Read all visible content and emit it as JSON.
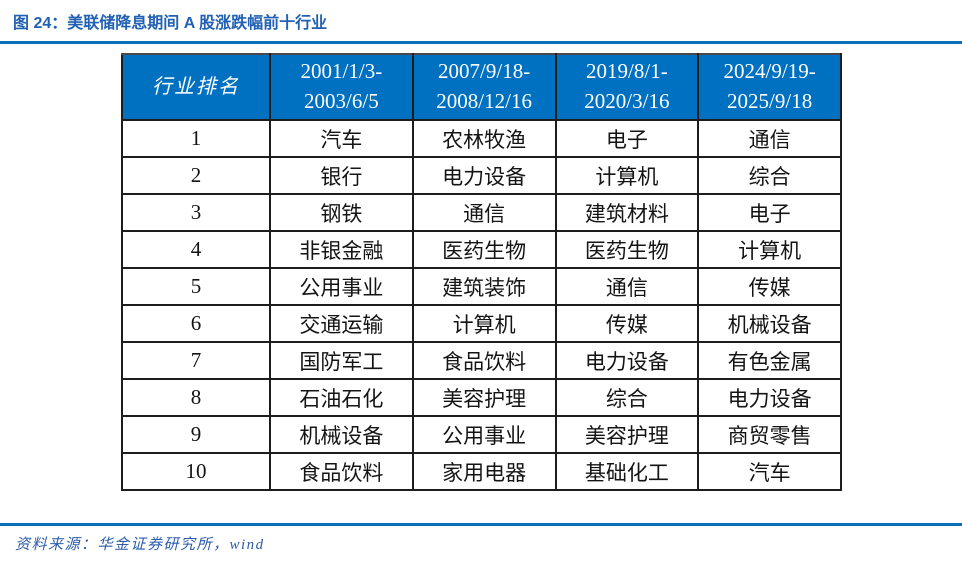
{
  "figure": {
    "title": "图 24：美联储降息期间 A 股涨跌幅前十行业",
    "source": "资料来源：华金证券研究所，wind"
  },
  "colors": {
    "header_bg": "#0070C0",
    "title_text": "#2160b2",
    "rule_blue": "#0d6eb8",
    "table_border": "#1d1d1d",
    "source_text": "#2b5cab"
  },
  "table": {
    "header": [
      "行业排名",
      "2001/1/3-\n2003/6/5",
      "2007/9/18-\n2008/12/16",
      "2019/8/1-\n2020/3/16",
      "2024/9/19-\n2025/9/18"
    ],
    "rows": [
      [
        "1",
        "汽车",
        "农林牧渔",
        "电子",
        "通信"
      ],
      [
        "2",
        "银行",
        "电力设备",
        "计算机",
        "综合"
      ],
      [
        "3",
        "钢铁",
        "通信",
        "建筑材料",
        "电子"
      ],
      [
        "4",
        "非银金融",
        "医药生物",
        "医药生物",
        "计算机"
      ],
      [
        "5",
        "公用事业",
        "建筑装饰",
        "通信",
        "传媒"
      ],
      [
        "6",
        "交通运输",
        "计算机",
        "传媒",
        "机械设备"
      ],
      [
        "7",
        "国防军工",
        "食品饮料",
        "电力设备",
        "有色金属"
      ],
      [
        "8",
        "石油石化",
        "美容护理",
        "综合",
        "电力设备"
      ],
      [
        "9",
        "机械设备",
        "公用事业",
        "美容护理",
        "商贸零售"
      ],
      [
        "10",
        "食品饮料",
        "家用电器",
        "基础化工",
        "汽车"
      ]
    ]
  },
  "chart_data": {
    "type": "table",
    "title": "图 24：美联储降息期间 A 股涨跌幅前十行业",
    "columns": [
      "行业排名",
      "2001/1/3-2003/6/5",
      "2007/9/18-2008/12/16",
      "2019/8/1-2020/3/16",
      "2024/9/19-2025/9/18"
    ],
    "rows": [
      [
        "1",
        "汽车",
        "农林牧渔",
        "电子",
        "通信"
      ],
      [
        "2",
        "银行",
        "电力设备",
        "计算机",
        "综合"
      ],
      [
        "3",
        "钢铁",
        "通信",
        "建筑材料",
        "电子"
      ],
      [
        "4",
        "非银金融",
        "医药生物",
        "医药生物",
        "计算机"
      ],
      [
        "5",
        "公用事业",
        "建筑装饰",
        "通信",
        "传媒"
      ],
      [
        "6",
        "交通运输",
        "计算机",
        "传媒",
        "机械设备"
      ],
      [
        "7",
        "国防军工",
        "食品饮料",
        "电力设备",
        "有色金属"
      ],
      [
        "8",
        "石油石化",
        "美容护理",
        "综合",
        "电力设备"
      ],
      [
        "9",
        "机械设备",
        "公用事业",
        "美容护理",
        "商贸零售"
      ],
      [
        "10",
        "食品饮料",
        "家用电器",
        "基础化工",
        "汽车"
      ]
    ],
    "source": "资料来源：华金证券研究所，wind",
    "layout_hints": {
      "header_style": "blue background, white serif text, two-line date ranges",
      "grid": "on",
      "first_column": "rank 1-10"
    }
  }
}
